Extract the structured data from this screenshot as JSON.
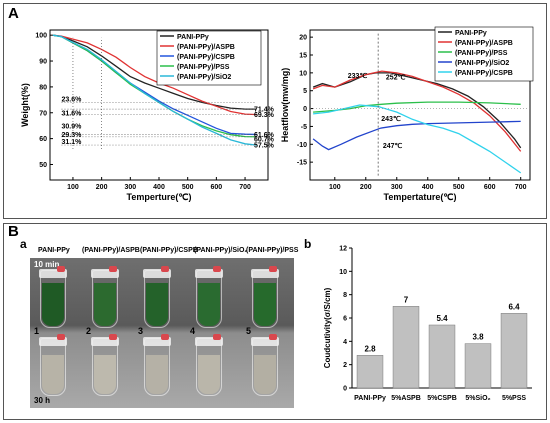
{
  "panel_a": {
    "label": "A",
    "chart_data": [
      {
        "type": "line",
        "xlabel": "Temperture(℃)",
        "ylabel": "Weight(%)",
        "xlim": [
          20,
          780
        ],
        "ylim": [
          44,
          102
        ],
        "xticks": [
          100,
          200,
          300,
          400,
          500,
          600,
          700
        ],
        "yticks": [
          50,
          60,
          70,
          80,
          90,
          100
        ],
        "legend_position": "top-right",
        "series": [
          {
            "name": "PANI-PPy",
            "color": "#222222",
            "x": [
              30,
              60,
              100,
              150,
              200,
              250,
              300,
              350,
              400,
              450,
              500,
              550,
              600,
              650,
              700,
              740
            ],
            "y": [
              100,
              99.5,
              97.8,
              95.5,
              92,
              88,
              84,
              81.5,
              79.5,
              77.5,
              75.5,
              74,
              72.8,
              71.8,
              71.4,
              71.4
            ]
          },
          {
            "name": "(PANI-PPy)/ASPB",
            "color": "#e03232",
            "x": [
              30,
              60,
              100,
              150,
              200,
              250,
              300,
              350,
              400,
              450,
              500,
              550,
              600,
              650,
              700,
              740
            ],
            "y": [
              100,
              99.6,
              98.5,
              97,
              94.5,
              91.5,
              87.5,
              84,
              81.5,
              79.5,
              77,
              74.5,
              72.5,
              70.5,
              69.5,
              69.3
            ]
          },
          {
            "name": "(PANI-PPy)/CSPB",
            "color": "#2255dd",
            "x": [
              30,
              60,
              100,
              150,
              200,
              250,
              300,
              350,
              400,
              450,
              500,
              550,
              600,
              650,
              700,
              740
            ],
            "y": [
              100,
              99.5,
              97,
              94,
              90,
              85.5,
              81.5,
              78,
              74.5,
              71.5,
              69,
              66.5,
              64,
              62,
              61.7,
              61.6
            ]
          },
          {
            "name": "(PANI-PPy)/PSS",
            "color": "#2bbf4a",
            "x": [
              30,
              60,
              100,
              150,
              200,
              250,
              300,
              350,
              400,
              450,
              500,
              550,
              600,
              650,
              700,
              740
            ],
            "y": [
              100,
              99.4,
              97,
              94,
              90,
              85.5,
              81,
              77.5,
              74,
              70.5,
              67.5,
              65,
              63,
              61.5,
              60.8,
              60.7
            ]
          },
          {
            "name": "(PANI-PPy)/SiO2",
            "color": "#2ab8d8",
            "x": [
              30,
              60,
              100,
              150,
              200,
              250,
              300,
              350,
              400,
              450,
              500,
              550,
              600,
              650,
              700,
              740
            ],
            "y": [
              100,
              99.4,
              97.2,
              94.5,
              90.5,
              86,
              81.5,
              77.5,
              74,
              70.5,
              67.5,
              64.5,
              62,
              59.5,
              58,
              57.5
            ]
          }
        ],
        "end_labels": [
          "71.4%",
          "69.3%",
          "61.6%",
          "60.7%",
          "57.5%"
        ],
        "loss_labels": [
          "23.6%",
          "31.6%",
          "30.9%",
          "29.3%",
          "31.1%"
        ]
      },
      {
        "type": "line",
        "xlabel": "Tempertature(℃)",
        "ylabel": "Heatflow(mw/mg)",
        "xlim": [
          20,
          730
        ],
        "ylim": [
          -20,
          22
        ],
        "xticks": [
          100,
          200,
          300,
          400,
          500,
          600,
          700
        ],
        "yticks": [
          -15,
          -10,
          -5,
          0,
          5,
          10,
          15,
          20
        ],
        "legend_position": "top-right",
        "series": [
          {
            "name": "PANI-PPy",
            "color": "#222222",
            "x": [
              30,
              60,
              100,
              150,
              200,
              233,
              280,
              330,
              380,
              430,
              480,
              530,
              580,
              630,
              680,
              700
            ],
            "y": [
              6,
              7,
              6,
              7.5,
              9.5,
              10,
              10,
              9,
              8,
              7,
              5.5,
              3.5,
              0.5,
              -3.5,
              -8.5,
              -11
            ]
          },
          {
            "name": "(PANI-PPy)/ASPB",
            "color": "#e03232",
            "x": [
              30,
              60,
              100,
              150,
              200,
              252,
              300,
              350,
              400,
              450,
              500,
              550,
              600,
              650,
              700
            ],
            "y": [
              5.5,
              6.5,
              6,
              8,
              9.5,
              10.5,
              10,
              9,
              7.5,
              6,
              4,
              1.5,
              -2,
              -6.5,
              -12
            ]
          },
          {
            "name": "(PANI-PPy)/PSS",
            "color": "#2bbf4a",
            "x": [
              30,
              60,
              100,
              150,
              200,
              250,
              300,
              400,
              500,
              600,
              700
            ],
            "y": [
              -1,
              -0.8,
              -0.5,
              0,
              0.8,
              1.2,
              1.5,
              1.8,
              1.8,
              1.6,
              1.2
            ]
          },
          {
            "name": "(PANI-PPy)/SiO2",
            "color": "#2244cc",
            "x": [
              30,
              60,
              80,
              120,
              170,
              247,
              300,
              350,
              400,
              500,
              600,
              700
            ],
            "y": [
              -8.5,
              -10.5,
              -11.5,
              -10,
              -8,
              -5.5,
              -4.8,
              -4.4,
              -4.2,
              -4,
              -3.8,
              -3.6
            ]
          },
          {
            "name": "(PANI-PPy)/CSPB",
            "color": "#30d2ec",
            "x": [
              30,
              80,
              130,
              180,
              243,
              300,
              350,
              400,
              450,
              500,
              550,
              600,
              650,
              700
            ],
            "y": [
              -1.5,
              -1,
              0,
              1,
              0.5,
              -1,
              -3,
              -4.5,
              -5.5,
              -7,
              -9.5,
              -12,
              -15,
              -18
            ]
          }
        ],
        "annotations": [
          "233℃",
          "252℃",
          "243℃",
          "247℃"
        ],
        "reference_x": 240
      }
    ]
  },
  "panel_b": {
    "label": "B",
    "photo": {
      "sublabel": "a",
      "titles": [
        "PANI-PPy",
        "(PANI-PPy)/ASPB",
        "(PANI-PPy)/CSPB",
        "(PANI-PPy)/SiO₂",
        "(PANI-PPy)/PSS"
      ],
      "top_time": "10 min",
      "bottom_time": "30 h",
      "numbers": [
        "1",
        "2",
        "3",
        "4",
        "5"
      ]
    },
    "chart_data": {
      "sublabel": "b",
      "type": "bar",
      "categories": [
        "PANI-PPy",
        "5%ASPB",
        "5%CSPB",
        "5%SiO₂",
        "5%PSS"
      ],
      "values": [
        2.8,
        7,
        5.4,
        3.8,
        6.4
      ],
      "value_labels": [
        "2.8",
        "7",
        "5.4",
        "3.8",
        "6.4"
      ],
      "ylabel": "Coudcutivity(σ/S/cm)",
      "ylim": [
        0,
        12
      ],
      "yticks": [
        0,
        2,
        4,
        6,
        8,
        10,
        12
      ],
      "bar_color": "#c0c0c0"
    }
  }
}
